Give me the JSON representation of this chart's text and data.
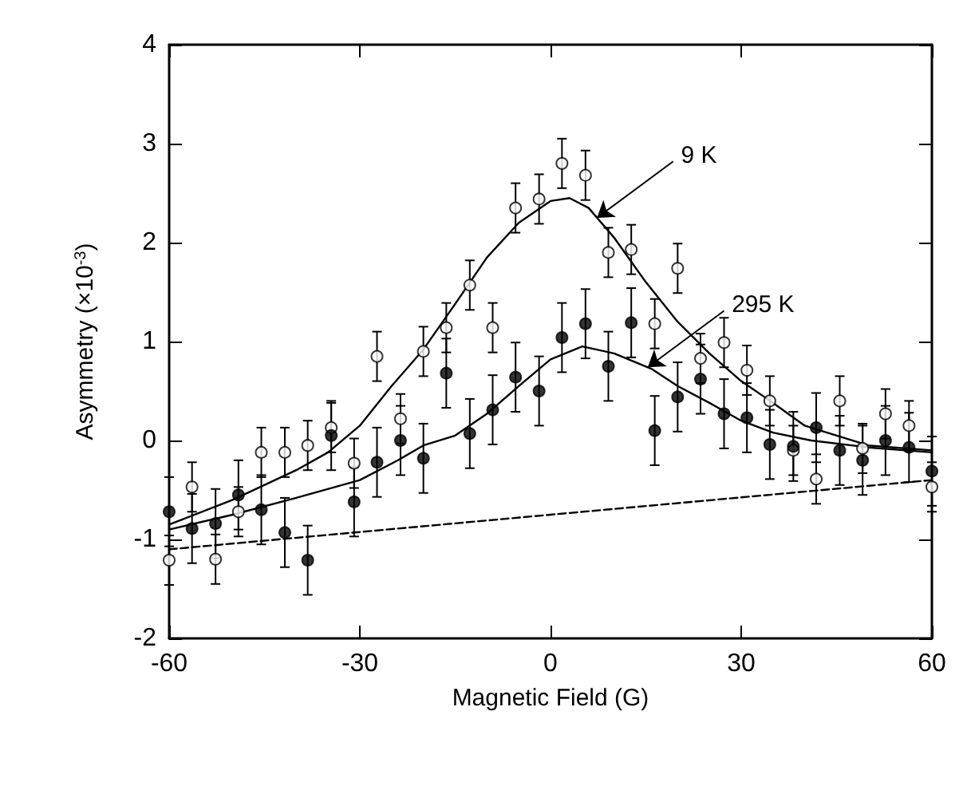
{
  "chart_data": {
    "type": "scatter",
    "xlabel": "Magnetic Field (G)",
    "ylabel": "Asymmetry (×10$^{-3}$)",
    "x": [
      -60,
      -56.4,
      -52.7,
      -49.1,
      -45.5,
      -41.8,
      -38.2,
      -34.5,
      -30.9,
      -27.3,
      -23.6,
      -20,
      -16.4,
      -12.7,
      -9.1,
      -5.5,
      -1.8,
      1.8,
      5.5,
      9.1,
      12.7,
      16.4,
      20,
      23.6,
      27.3,
      30.9,
      34.5,
      38.2,
      41.8,
      45.5,
      49.1,
      52.7,
      56.4,
      60
    ],
    "series": [
      {
        "color": "#ffffff",
        "marker": "circle",
        "values": [
          -1.21,
          -0.47,
          -1.2,
          -0.72,
          -0.12,
          -0.12,
          -0.05,
          0.13,
          -0.23,
          0.85,
          0.22,
          0.9,
          1.14,
          1.57,
          1.14,
          2.35,
          2.44,
          2.8,
          2.68,
          1.9,
          1.93,
          1.18,
          1.74,
          0.83,
          0.99,
          0.71,
          0.4,
          -0.1,
          -0.39,
          0.4,
          -0.08,
          0.27,
          0.15,
          -0.47
        ],
        "errors": [
          0.25,
          0.25,
          0.25,
          0.25,
          0.25,
          0.25,
          0.25,
          0.25,
          0.25,
          0.25,
          0.25,
          0.25,
          0.25,
          0.25,
          0.25,
          0.25,
          0.25,
          0.25,
          0.25,
          0.25,
          0.25,
          0.25,
          0.25,
          0.25,
          0.25,
          0.25,
          0.25,
          0.25,
          0.25,
          0.25,
          0.25,
          0.25,
          0.25,
          0.25
        ]
      },
      {
        "color": "#000000",
        "marker": "circle",
        "values": [
          -0.72,
          -0.89,
          -0.84,
          -0.55,
          -0.7,
          -0.93,
          -1.21,
          0.05,
          -0.62,
          -0.22,
          0,
          -0.18,
          0.68,
          0.07,
          0.31,
          0.64,
          0.5,
          1.04,
          1.18,
          0.75,
          1.19,
          0.1,
          0.44,
          0.62,
          0.27,
          0.23,
          -0.04,
          -0.06,
          0.13,
          -0.1,
          -0.2,
          0,
          -0.07,
          -0.31
        ],
        "errors": [
          0.35,
          0.35,
          0.35,
          0.35,
          0.35,
          0.35,
          0.35,
          0.35,
          0.35,
          0.35,
          0.35,
          0.35,
          0.35,
          0.35,
          0.35,
          0.35,
          0.35,
          0.35,
          0.35,
          0.35,
          0.35,
          0.35,
          0.35,
          0.35,
          0.35,
          0.35,
          0.35,
          0.35,
          0.35,
          0.35,
          0.35,
          0.35,
          0.35,
          0.35
        ]
      },
      {
        "type": "line",
        "color": "#000000",
        "marker": "none",
        "line_style": "solid",
        "x": [
          -60,
          -50,
          -40,
          -35,
          -30,
          -25,
          -20,
          -15,
          -10,
          -5,
          0,
          3,
          6,
          10,
          15,
          20,
          25,
          30,
          35,
          40,
          50,
          60
        ],
        "values": [
          -0.85,
          -0.6,
          -0.3,
          -0.12,
          0.15,
          0.55,
          0.92,
          1.38,
          1.85,
          2.2,
          2.42,
          2.45,
          2.35,
          2.05,
          1.6,
          1.2,
          0.88,
          0.6,
          0.38,
          0.15,
          -0.05,
          -0.1
        ]
      },
      {
        "type": "line",
        "color": "#000000",
        "marker": "none",
        "line_style": "solid",
        "x": [
          -60,
          -50,
          -40,
          -30,
          -24,
          -20,
          -15,
          -10,
          -5,
          0,
          5,
          10,
          16,
          20,
          25,
          30,
          35,
          41,
          50,
          60
        ],
        "values": [
          -0.9,
          -0.75,
          -0.58,
          -0.4,
          -0.2,
          -0.05,
          0.05,
          0.27,
          0.55,
          0.82,
          0.95,
          0.88,
          0.72,
          0.55,
          0.38,
          0.2,
          0.08,
          0,
          -0.07,
          -0.12
        ]
      },
      {
        "type": "line",
        "color": "#000000",
        "marker": "none",
        "line_style": "dashed",
        "x": [
          -60,
          60
        ],
        "values": [
          -1.1,
          -0.4
        ]
      }
    ],
    "annotations": [
      {
        "text": "9 K",
        "x": 7.3,
        "y": 2.25
      },
      {
        "text": "295 K",
        "x": 15.3,
        "y": 0.74
      }
    ],
    "xlim": [
      -60,
      60
    ],
    "xticks": [
      -60,
      -30,
      0,
      30,
      60
    ],
    "ylim": [
      -2,
      4
    ],
    "yticks": [
      -2,
      -1,
      0,
      1,
      2,
      3,
      4
    ],
    "grid": false
  }
}
